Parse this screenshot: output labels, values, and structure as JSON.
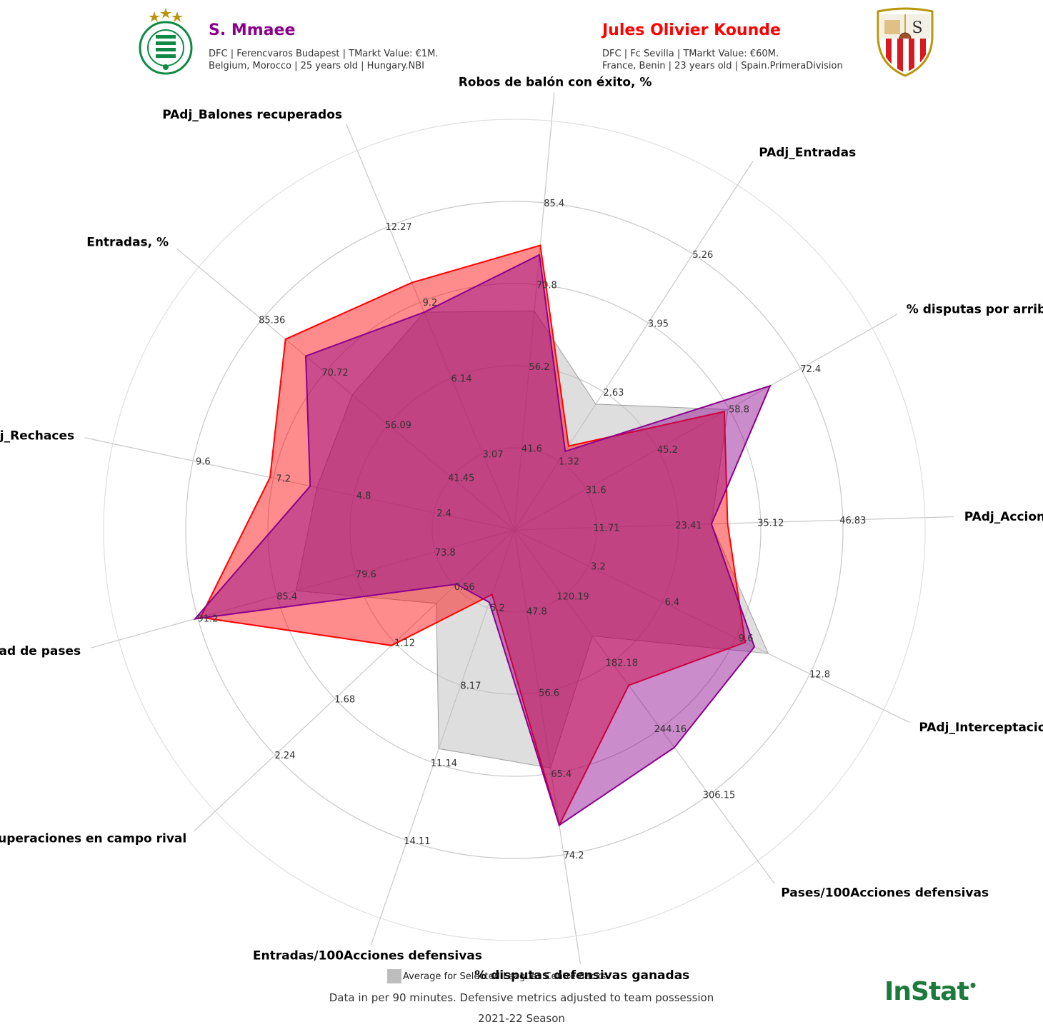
{
  "player1": {
    "name": "S. Mmaee",
    "color": "#8b008b",
    "line1": "DFC | Ferencvaros Budapest | TMarkt Value: €1M.",
    "line2": "Belgium, Morocco | 25 years old | Hungary.NBI",
    "crest_text": "FERENCVÁROSI TORNA CLUB",
    "crest_sub": "BPEST.IX.K.",
    "crest_year_left": "18",
    "crest_year_right": "99"
  },
  "player2": {
    "name": "Jules Olivier Kounde",
    "color": "#ff0000",
    "line1": "DFC | Fc Sevilla | TMarkt Value: €60M.",
    "line2": "France, Benin | 23 years old | Spain.PrimeraDivision"
  },
  "legend_label": "Average for Selected Leagues Centre-Backs",
  "footer_note": "Data in per 90 minutes. Defensive metrics adjusted to team possession",
  "season": "2021-22 Season",
  "brand": "InStat",
  "chart_data": {
    "type": "radar",
    "ring_count": 5,
    "axes": [
      {
        "label": "PAdj_Acciones defensivas",
        "ticks": [
          "11.71",
          "23.41",
          "35.12",
          "46.83"
        ],
        "min": 0,
        "max": 58.54
      },
      {
        "label": "PAdj_Interceptaciones+Entradas",
        "ticks": [
          "3.2",
          "6.4",
          "9.6",
          "12.8"
        ],
        "min": 0,
        "max": 16
      },
      {
        "label": "Pases/100Acciones defensivas",
        "ticks": [
          "120.19",
          "182.18",
          "244.16",
          "306.15"
        ],
        "min": 58.2,
        "max": 368.14
      },
      {
        "label": "% disputas defensivas ganadas",
        "ticks": [
          "47.8",
          "56.6",
          "65.4",
          "74.2"
        ],
        "min": 39.0,
        "max": 83.0
      },
      {
        "label": "Entradas/100Acciones defensivas",
        "ticks": [
          "5.2",
          "8.17",
          "11.14",
          "14.11"
        ],
        "min": 2.23,
        "max": 17.08
      },
      {
        "label": "Recuperaciones en campo rival",
        "ticks": [
          "0.56",
          "1.12",
          "1.68",
          "2.24"
        ],
        "min": 0,
        "max": 2.8
      },
      {
        "label": "% de efectividad de pases",
        "ticks": [
          "73.8",
          "79.6",
          "85.4",
          "91.2"
        ],
        "min": 68.0,
        "max": 97.0
      },
      {
        "label": "PAdj_Rechaces",
        "ticks": [
          "2.4",
          "4.8",
          "7.2",
          "9.6"
        ],
        "min": 0,
        "max": 12
      },
      {
        "label": "Entradas, %",
        "ticks": [
          "41.45",
          "56.09",
          "70.72",
          "85.36"
        ],
        "min": 26.81,
        "max": 100.0
      },
      {
        "label": "PAdj_Balones recuperados",
        "ticks": [
          "3.07",
          "6.14",
          "9.2",
          "12.27"
        ],
        "min": 0,
        "max": 15.34
      },
      {
        "label": "Robos de balón con éxito, %",
        "ticks": [
          "41.6",
          "56.2",
          "70.8",
          "85.4"
        ],
        "min": 27.0,
        "max": 100.0
      },
      {
        "label": "PAdj_Entradas",
        "ticks": [
          "1.32",
          "2.63",
          "3.95",
          "5.26"
        ],
        "min": 0,
        "max": 6.58
      },
      {
        "label": "% disputas por arriba ganadas",
        "ticks": [
          "31.6",
          "45.2",
          "58.8",
          "72.4"
        ],
        "min": 18.0,
        "max": 86.0
      }
    ],
    "series": [
      {
        "name": "Average for Selected Leagues Centre-Backs",
        "color": "#bdbdbd",
        "values": [
          28.1,
          11.0,
          157.5,
          64.8,
          10.6,
          0.73,
          84.0,
          5.9,
          64.4,
          8.8,
          66.1,
          2.4,
          58.6
        ]
      },
      {
        "name": "Jules Olivier Kounde",
        "color": "#ff0000",
        "values": [
          30.4,
          10.0,
          203.8,
          71.0,
          4.7,
          1.15,
          91.0,
          7.3,
          79.9,
          10.0,
          77.8,
          1.6,
          57.9
        ]
      },
      {
        "name": "S. Mmaee",
        "color": "#8b008b",
        "values": [
          28.1,
          10.4,
          262.0,
          71.0,
          5.0,
          0.54,
          91.4,
          6.1,
          75.2,
          8.8,
          76.1,
          1.5,
          66.6
        ]
      }
    ]
  }
}
